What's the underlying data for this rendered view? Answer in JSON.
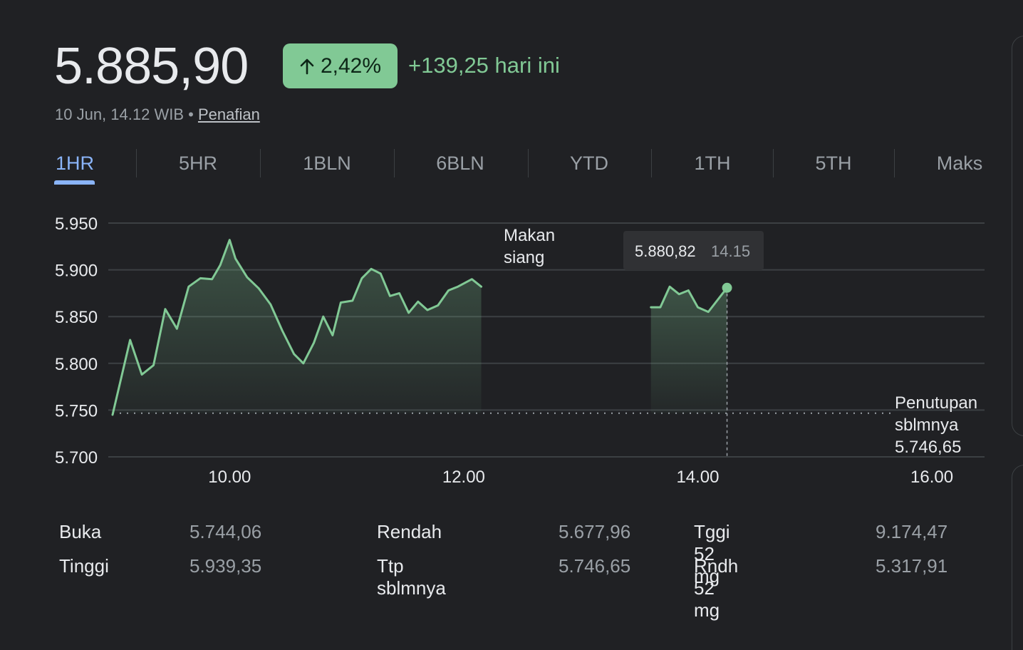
{
  "quote": {
    "price": "5.885,90",
    "change_percent": "2,42%",
    "change_today": "+139,25 hari ini",
    "timestamp": "10 Jun, 14.12 WIB",
    "separator": "•",
    "disclaimer_link": "Penafian",
    "accent_color": "#81c995",
    "badge_icon": "arrow-up-icon"
  },
  "tabs": [
    {
      "label": "1HR",
      "active": true
    },
    {
      "label": "5HR",
      "active": false
    },
    {
      "label": "1BLN",
      "active": false
    },
    {
      "label": "6BLN",
      "active": false
    },
    {
      "label": "YTD",
      "active": false
    },
    {
      "label": "1TH",
      "active": false
    },
    {
      "label": "5TH",
      "active": false
    },
    {
      "label": "Maks",
      "active": false
    }
  ],
  "chart_data": {
    "type": "line",
    "xlim": [
      9.0,
      16.45
    ],
    "ylim": [
      5700,
      5950
    ],
    "y_ticks": [
      5950,
      5900,
      5850,
      5800,
      5750,
      5700
    ],
    "y_tick_labels": [
      "5.950",
      "5.900",
      "5.850",
      "5.800",
      "5.750",
      "5.700"
    ],
    "x_ticks": [
      10,
      12,
      14,
      16
    ],
    "x_tick_labels": [
      "10.00",
      "12.00",
      "14.00",
      "16.00"
    ],
    "grid": true,
    "line_color": "#81c995",
    "series": [
      {
        "segment": "morning",
        "points": [
          [
            9.0,
            5745
          ],
          [
            9.15,
            5825
          ],
          [
            9.25,
            5788
          ],
          [
            9.35,
            5798
          ],
          [
            9.45,
            5858
          ],
          [
            9.55,
            5837
          ],
          [
            9.65,
            5882
          ],
          [
            9.75,
            5891
          ],
          [
            9.85,
            5890
          ],
          [
            9.92,
            5905
          ],
          [
            10.0,
            5932
          ],
          [
            10.05,
            5912
          ],
          [
            10.15,
            5892
          ],
          [
            10.25,
            5880
          ],
          [
            10.35,
            5863
          ],
          [
            10.45,
            5835
          ],
          [
            10.55,
            5810
          ],
          [
            10.63,
            5800
          ],
          [
            10.72,
            5822
          ],
          [
            10.8,
            5850
          ],
          [
            10.88,
            5830
          ],
          [
            10.95,
            5865
          ],
          [
            11.05,
            5867
          ],
          [
            11.13,
            5891
          ],
          [
            11.21,
            5901
          ],
          [
            11.29,
            5896
          ],
          [
            11.37,
            5872
          ],
          [
            11.45,
            5875
          ],
          [
            11.53,
            5854
          ],
          [
            11.61,
            5866
          ],
          [
            11.69,
            5857
          ],
          [
            11.78,
            5862
          ],
          [
            11.87,
            5878
          ],
          [
            11.95,
            5882
          ],
          [
            12.07,
            5890
          ],
          [
            12.15,
            5882
          ]
        ]
      },
      {
        "segment": "afternoon",
        "points": [
          [
            13.6,
            5860
          ],
          [
            13.68,
            5860
          ],
          [
            13.76,
            5882
          ],
          [
            13.84,
            5874
          ],
          [
            13.92,
            5878
          ],
          [
            14.0,
            5860
          ],
          [
            14.09,
            5855
          ],
          [
            14.25,
            5880.82
          ]
        ]
      }
    ],
    "previous_close": {
      "value": 5746.65,
      "label_line1": "Penutupan",
      "label_line2": "sblmnya",
      "label_value": "5.746,65"
    },
    "annotations": [
      {
        "text_line1": "Makan",
        "text_line2": "siang",
        "x": 12.55
      }
    ],
    "tooltip": {
      "value": "5.880,82",
      "time": "14.15",
      "x": 14.25,
      "y": 5880.82
    }
  },
  "stats": [
    {
      "label": "Buka",
      "value": "5.744,06"
    },
    {
      "label": "Tinggi",
      "value": "5.939,35"
    },
    {
      "label": "Rendah",
      "value": "5.677,96"
    },
    {
      "label": "Ttp sblmnya",
      "value": "5.746,65"
    },
    {
      "label": "Tggi 52 mg",
      "value": "9.174,47"
    },
    {
      "label": "Rndh 52 mg",
      "value": "5.317,91"
    }
  ]
}
